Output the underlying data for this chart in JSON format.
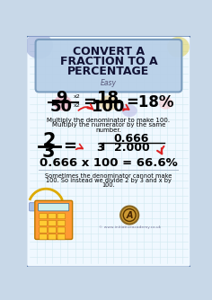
{
  "title_line1": "CONVERT A",
  "title_line2": "FRACTION TO A",
  "title_line3": "PERCENTAGE",
  "subtitle": "Easy",
  "bg_outer": "#c8d8e8",
  "bg_inner": "#f0f8ff",
  "title_bg": "#b8d0e8",
  "border_outer": "#5577aa",
  "border_title": "#7799bb",
  "title_color": "#111133",
  "fraction1_num": "9",
  "fraction1_den": "50",
  "mult_sup": "x2",
  "fraction2_num": "18",
  "fraction2_den": "100",
  "result1": "=18%",
  "explain1_line1": "Multiply the denominator to make 100.",
  "explain1_line2": "Multiply the numerator by the same",
  "explain1_line3": "number.",
  "fraction3_num": "2",
  "fraction3_den": "3",
  "div_top": "0.666",
  "div_divisor": "3",
  "div_dividend": "2.000",
  "division_result": "0.666 x 100 = 66.6%",
  "explain2_line1": "Sometimes the denominator cannot make",
  "explain2_line2": "100. So instead we divide 2 by 3 and x by",
  "explain2_line3": "100.",
  "watermark": "© www.initiativeacademy.co.uk",
  "arrow_color": "#dd2222",
  "grid_color": "#d0e8f0",
  "text_dark": "#111111"
}
